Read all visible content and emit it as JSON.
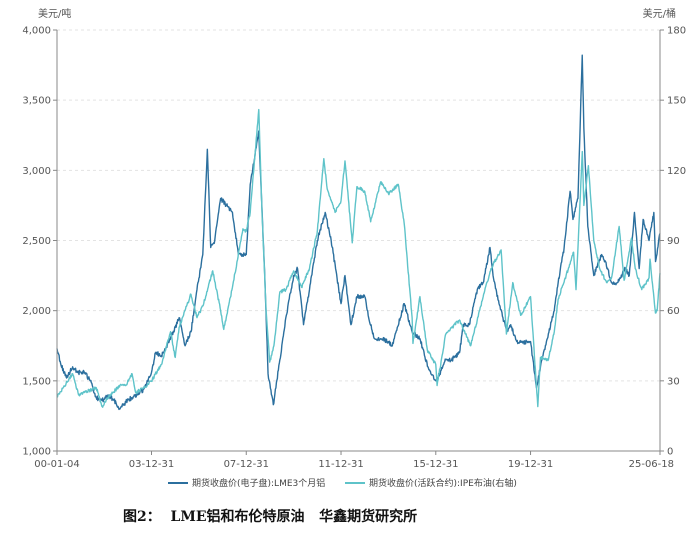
{
  "caption": "图2：  LME铝和布伦特原油   华鑫期货研究所",
  "chart_data": {
    "type": "line",
    "title": "",
    "left_axis": {
      "unit": "美元/吨",
      "min": 1000,
      "max": 4000,
      "ticks": [
        "1,000",
        "1,500",
        "2,000",
        "2,500",
        "3,000",
        "3,500",
        "4,000"
      ],
      "tick_values": [
        1000,
        1500,
        2000,
        2500,
        3000,
        3500,
        4000
      ]
    },
    "right_axis": {
      "unit": "美元/桶",
      "min": 0,
      "max": 180,
      "ticks": [
        "0",
        "30",
        "60",
        "90",
        "120",
        "150",
        "180"
      ],
      "tick_values": [
        0,
        30,
        60,
        90,
        120,
        150,
        180
      ]
    },
    "x_axis": {
      "start": "2000-01-04",
      "end": "2025-06-18",
      "ticks": [
        "00-01-04",
        "03-12-31",
        "07-12-31",
        "11-12-31",
        "15-12-31",
        "19-12-31",
        "25-06-18"
      ],
      "tick_dates": [
        "2000-01-04",
        "2003-12-31",
        "2007-12-31",
        "2011-12-31",
        "2015-12-31",
        "2019-12-31",
        "2025-06-18"
      ]
    },
    "grid": "horizontal-dashed",
    "legend_position": "bottom",
    "series": [
      {
        "name": "期货收盘价(电子盘):LME3个月铝",
        "axis": "left",
        "color": "#2b6f9e",
        "points": [
          [
            "2000-01-04",
            1730
          ],
          [
            "2000-03-01",
            1620
          ],
          [
            "2000-06-01",
            1520
          ],
          [
            "2000-09-01",
            1600
          ],
          [
            "2000-12-01",
            1560
          ],
          [
            "2001-03-01",
            1560
          ],
          [
            "2001-06-01",
            1500
          ],
          [
            "2001-09-01",
            1380
          ],
          [
            "2001-12-01",
            1360
          ],
          [
            "2002-03-01",
            1400
          ],
          [
            "2002-06-01",
            1360
          ],
          [
            "2002-09-01",
            1300
          ],
          [
            "2002-12-01",
            1350
          ],
          [
            "2003-03-01",
            1380
          ],
          [
            "2003-06-01",
            1400
          ],
          [
            "2003-09-01",
            1440
          ],
          [
            "2003-12-31",
            1560
          ],
          [
            "2004-03-01",
            1700
          ],
          [
            "2004-06-01",
            1680
          ],
          [
            "2004-09-01",
            1760
          ],
          [
            "2004-12-31",
            1880
          ],
          [
            "2005-03-01",
            1950
          ],
          [
            "2005-06-01",
            1750
          ],
          [
            "2005-09-01",
            1850
          ],
          [
            "2005-12-01",
            2150
          ],
          [
            "2006-03-01",
            2400
          ],
          [
            "2006-05-10",
            3150
          ],
          [
            "2006-07-01",
            2450
          ],
          [
            "2006-09-01",
            2500
          ],
          [
            "2006-12-01",
            2800
          ],
          [
            "2007-03-01",
            2750
          ],
          [
            "2007-06-01",
            2700
          ],
          [
            "2007-09-01",
            2400
          ],
          [
            "2007-12-31",
            2400
          ],
          [
            "2008-03-01",
            2900
          ],
          [
            "2008-07-10",
            3280
          ],
          [
            "2008-09-01",
            2700
          ],
          [
            "2008-10-15",
            2200
          ],
          [
            "2008-12-01",
            1550
          ],
          [
            "2009-02-20",
            1330
          ],
          [
            "2009-04-01",
            1450
          ],
          [
            "2009-06-01",
            1650
          ],
          [
            "2009-09-01",
            1950
          ],
          [
            "2009-12-31",
            2250
          ],
          [
            "2010-03-01",
            2300
          ],
          [
            "2010-06-01",
            1900
          ],
          [
            "2010-09-01",
            2150
          ],
          [
            "2010-12-31",
            2500
          ],
          [
            "2011-05-01",
            2700
          ],
          [
            "2011-08-01",
            2500
          ],
          [
            "2011-12-31",
            2050
          ],
          [
            "2012-03-01",
            2250
          ],
          [
            "2012-06-01",
            1900
          ],
          [
            "2012-09-01",
            2100
          ],
          [
            "2012-12-31",
            2100
          ],
          [
            "2013-03-01",
            1950
          ],
          [
            "2013-06-01",
            1800
          ],
          [
            "2013-09-01",
            1800
          ],
          [
            "2013-12-31",
            1780
          ],
          [
            "2014-03-01",
            1750
          ],
          [
            "2014-09-01",
            2050
          ],
          [
            "2014-12-31",
            1850
          ],
          [
            "2015-05-01",
            1800
          ],
          [
            "2015-09-01",
            1600
          ],
          [
            "2015-12-31",
            1500
          ],
          [
            "2016-03-01",
            1550
          ],
          [
            "2016-06-01",
            1650
          ],
          [
            "2016-09-01",
            1650
          ],
          [
            "2016-12-31",
            1700
          ],
          [
            "2017-03-01",
            1900
          ],
          [
            "2017-06-01",
            1900
          ],
          [
            "2017-10-01",
            2150
          ],
          [
            "2017-12-31",
            2200
          ],
          [
            "2018-04-15",
            2450
          ],
          [
            "2018-06-01",
            2250
          ],
          [
            "2018-09-01",
            2050
          ],
          [
            "2018-12-31",
            1850
          ],
          [
            "2019-03-01",
            1900
          ],
          [
            "2019-06-01",
            1780
          ],
          [
            "2019-09-01",
            1770
          ],
          [
            "2019-12-31",
            1780
          ],
          [
            "2020-04-01",
            1450
          ],
          [
            "2020-06-01",
            1600
          ],
          [
            "2020-09-01",
            1780
          ],
          [
            "2020-12-31",
            2000
          ],
          [
            "2021-03-01",
            2200
          ],
          [
            "2021-06-01",
            2450
          ],
          [
            "2021-09-01",
            2850
          ],
          [
            "2021-10-15",
            2650
          ],
          [
            "2021-12-31",
            2800
          ],
          [
            "2022-03-07",
            3820
          ],
          [
            "2022-04-01",
            3300
          ],
          [
            "2022-06-01",
            2600
          ],
          [
            "2022-09-01",
            2250
          ],
          [
            "2022-12-31",
            2400
          ],
          [
            "2023-03-01",
            2350
          ],
          [
            "2023-06-01",
            2200
          ],
          [
            "2023-09-01",
            2200
          ],
          [
            "2023-12-31",
            2300
          ],
          [
            "2024-03-01",
            2250
          ],
          [
            "2024-05-20",
            2700
          ],
          [
            "2024-08-01",
            2300
          ],
          [
            "2024-10-01",
            2650
          ],
          [
            "2024-12-31",
            2500
          ],
          [
            "2025-03-15",
            2700
          ],
          [
            "2025-04-10",
            2350
          ],
          [
            "2025-06-18",
            2550
          ]
        ]
      },
      {
        "name": "期货收盘价(活跃合约):IPE布油(右轴)",
        "axis": "right",
        "color": "#5ec3c9",
        "points": [
          [
            "2000-01-04",
            23
          ],
          [
            "2000-09-01",
            33
          ],
          [
            "2000-12-01",
            24
          ],
          [
            "2001-03-01",
            25
          ],
          [
            "2001-09-01",
            27
          ],
          [
            "2001-12-01",
            19
          ],
          [
            "2002-03-01",
            23
          ],
          [
            "2002-09-01",
            28
          ],
          [
            "2002-12-01",
            28
          ],
          [
            "2003-03-07",
            33
          ],
          [
            "2003-05-01",
            25
          ],
          [
            "2003-09-01",
            27
          ],
          [
            "2003-12-31",
            30
          ],
          [
            "2004-06-01",
            37
          ],
          [
            "2004-10-20",
            51
          ],
          [
            "2004-12-31",
            40
          ],
          [
            "2005-03-01",
            53
          ],
          [
            "2005-08-30",
            67
          ],
          [
            "2005-12-01",
            57
          ],
          [
            "2006-03-01",
            62
          ],
          [
            "2006-08-01",
            77
          ],
          [
            "2006-12-01",
            60
          ],
          [
            "2007-01-18",
            52
          ],
          [
            "2007-06-01",
            70
          ],
          [
            "2007-11-10",
            95
          ],
          [
            "2007-12-31",
            94
          ],
          [
            "2008-03-01",
            102
          ],
          [
            "2008-07-11",
            146
          ],
          [
            "2008-09-01",
            100
          ],
          [
            "2008-11-01",
            60
          ],
          [
            "2008-12-26",
            38
          ],
          [
            "2009-03-01",
            45
          ],
          [
            "2009-06-01",
            68
          ],
          [
            "2009-09-01",
            69
          ],
          [
            "2009-12-31",
            77
          ],
          [
            "2010-05-01",
            70
          ],
          [
            "2010-09-01",
            78
          ],
          [
            "2010-12-31",
            94
          ],
          [
            "2011-04-10",
            125
          ],
          [
            "2011-06-01",
            112
          ],
          [
            "2011-10-01",
            102
          ],
          [
            "2011-12-31",
            107
          ],
          [
            "2012-03-01",
            124
          ],
          [
            "2012-06-21",
            89
          ],
          [
            "2012-09-01",
            113
          ],
          [
            "2012-12-31",
            111
          ],
          [
            "2013-04-01",
            98
          ],
          [
            "2013-09-01",
            115
          ],
          [
            "2013-12-31",
            110
          ],
          [
            "2014-06-01",
            114
          ],
          [
            "2014-09-01",
            97
          ],
          [
            "2014-12-31",
            57
          ],
          [
            "2015-01-13",
            46
          ],
          [
            "2015-05-01",
            66
          ],
          [
            "2015-08-24",
            43
          ],
          [
            "2015-12-31",
            37
          ],
          [
            "2016-01-20",
            28
          ],
          [
            "2016-06-01",
            50
          ],
          [
            "2016-12-31",
            56
          ],
          [
            "2017-06-21",
            45
          ],
          [
            "2017-12-31",
            66
          ],
          [
            "2018-05-01",
            78
          ],
          [
            "2018-10-03",
            86
          ],
          [
            "2018-12-24",
            50
          ],
          [
            "2019-04-01",
            72
          ],
          [
            "2019-08-01",
            58
          ],
          [
            "2019-12-31",
            66
          ],
          [
            "2020-04-21",
            19
          ],
          [
            "2020-06-01",
            40
          ],
          [
            "2020-10-01",
            39
          ],
          [
            "2020-12-31",
            51
          ],
          [
            "2021-03-01",
            65
          ],
          [
            "2021-07-01",
            75
          ],
          [
            "2021-10-25",
            85
          ],
          [
            "2021-12-01",
            69
          ],
          [
            "2022-03-08",
            128
          ],
          [
            "2022-04-01",
            105
          ],
          [
            "2022-06-10",
            122
          ],
          [
            "2022-09-01",
            90
          ],
          [
            "2022-12-01",
            78
          ],
          [
            "2023-03-17",
            72
          ],
          [
            "2023-06-01",
            74
          ],
          [
            "2023-09-27",
            96
          ],
          [
            "2023-12-13",
            73
          ],
          [
            "2024-04-05",
            91
          ],
          [
            "2024-06-01",
            78
          ],
          [
            "2024-09-10",
            69
          ],
          [
            "2024-12-31",
            74
          ],
          [
            "2025-01-15",
            82
          ],
          [
            "2025-04-09",
            59
          ],
          [
            "2025-05-05",
            60
          ],
          [
            "2025-06-18",
            76
          ]
        ]
      }
    ]
  }
}
